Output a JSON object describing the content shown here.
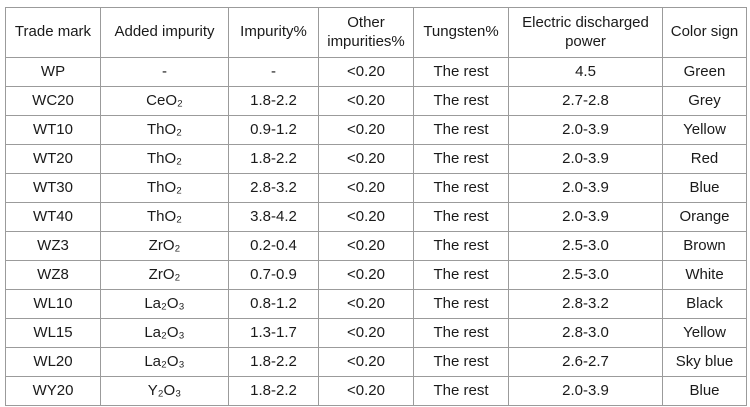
{
  "table": {
    "headers": [
      "Trade mark",
      "Added impurity",
      "Impurity%",
      "Other impurities%",
      "Tungsten%",
      "Electric discharged power",
      "Color sign"
    ],
    "rows": [
      {
        "trade_mark": "WP",
        "added_impurity": "-",
        "impurity_pct": "-",
        "other_impurities_pct": "<0.20",
        "tungsten_pct": "The rest",
        "discharge_power": "4.5",
        "color_sign": "Green"
      },
      {
        "trade_mark": "WC20",
        "added_impurity": "CeO₂",
        "impurity_pct": "1.8-2.2",
        "other_impurities_pct": "<0.20",
        "tungsten_pct": "The rest",
        "discharge_power": "2.7-2.8",
        "color_sign": "Grey"
      },
      {
        "trade_mark": "WT10",
        "added_impurity": "ThO₂",
        "impurity_pct": "0.9-1.2",
        "other_impurities_pct": "<0.20",
        "tungsten_pct": "The rest",
        "discharge_power": "2.0-3.9",
        "color_sign": "Yellow"
      },
      {
        "trade_mark": "WT20",
        "added_impurity": "ThO₂",
        "impurity_pct": "1.8-2.2",
        "other_impurities_pct": "<0.20",
        "tungsten_pct": "The rest",
        "discharge_power": "2.0-3.9",
        "color_sign": "Red"
      },
      {
        "trade_mark": "WT30",
        "added_impurity": "ThO₂",
        "impurity_pct": "2.8-3.2",
        "other_impurities_pct": "<0.20",
        "tungsten_pct": "The rest",
        "discharge_power": "2.0-3.9",
        "color_sign": "Blue"
      },
      {
        "trade_mark": "WT40",
        "added_impurity": "ThO₂",
        "impurity_pct": "3.8-4.2",
        "other_impurities_pct": "<0.20",
        "tungsten_pct": "The rest",
        "discharge_power": "2.0-3.9",
        "color_sign": "Orange"
      },
      {
        "trade_mark": "WZ3",
        "added_impurity": "ZrO₂",
        "impurity_pct": "0.2-0.4",
        "other_impurities_pct": "<0.20",
        "tungsten_pct": "The rest",
        "discharge_power": "2.5-3.0",
        "color_sign": "Brown"
      },
      {
        "trade_mark": "WZ8",
        "added_impurity": "ZrO₂",
        "impurity_pct": "0.7-0.9",
        "other_impurities_pct": "<0.20",
        "tungsten_pct": "The rest",
        "discharge_power": "2.5-3.0",
        "color_sign": "White"
      },
      {
        "trade_mark": "WL10",
        "added_impurity": "La₂O₃",
        "impurity_pct": "0.8-1.2",
        "other_impurities_pct": "<0.20",
        "tungsten_pct": "The rest",
        "discharge_power": "2.8-3.2",
        "color_sign": "Black"
      },
      {
        "trade_mark": "WL15",
        "added_impurity": "La₂O₃",
        "impurity_pct": "1.3-1.7",
        "other_impurities_pct": "<0.20",
        "tungsten_pct": "The rest",
        "discharge_power": "2.8-3.0",
        "color_sign": "Yellow"
      },
      {
        "trade_mark": "WL20",
        "added_impurity": "La₂O₃",
        "impurity_pct": "1.8-2.2",
        "other_impurities_pct": "<0.20",
        "tungsten_pct": "The rest",
        "discharge_power": "2.6-2.7",
        "color_sign": "Sky blue"
      },
      {
        "trade_mark": "WY20",
        "added_impurity": "Y₂O₃",
        "impurity_pct": "1.8-2.2",
        "other_impurities_pct": "<0.20",
        "tungsten_pct": "The rest",
        "discharge_power": "2.0-3.9",
        "color_sign": "Blue"
      }
    ]
  },
  "colors": {
    "border": "#9b9b9b",
    "text": "#1a1a1a",
    "background": "#ffffff"
  }
}
